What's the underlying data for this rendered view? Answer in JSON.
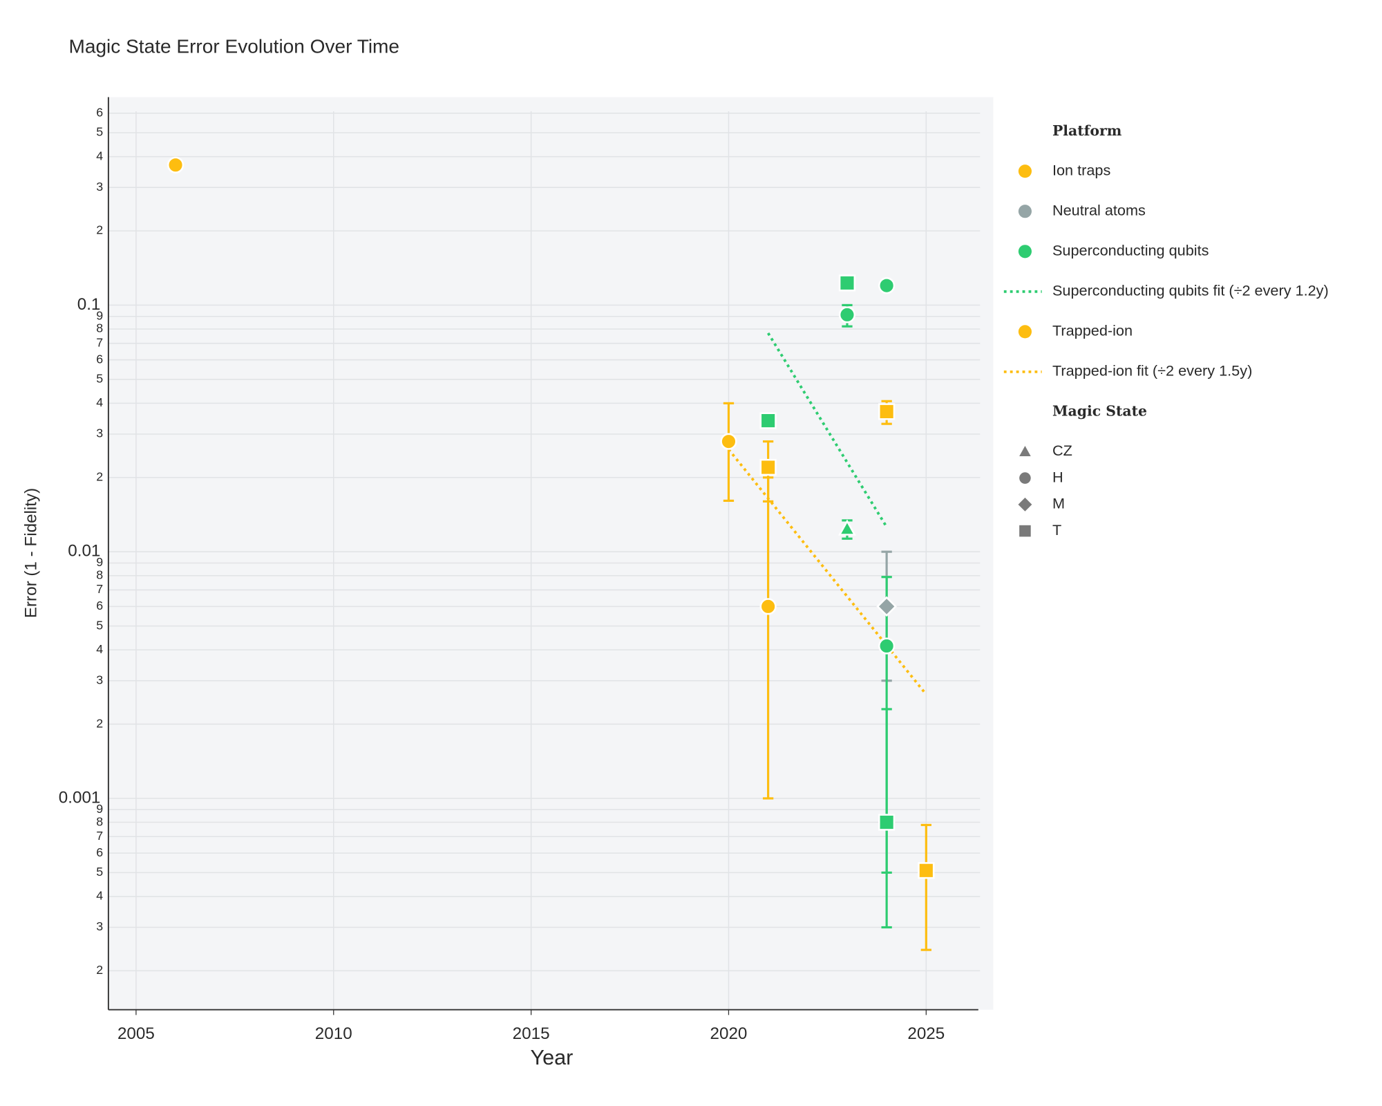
{
  "chart_data": {
    "type": "scatter",
    "title": "Magic State Error Evolution Over Time",
    "x_label": "Year",
    "y_label": "Error (1 - Fidelity)",
    "log_y": true,
    "grid": true,
    "xlim": [
      2004.3,
      2026.7
    ],
    "xticks": [
      2005,
      2010,
      2015,
      2020,
      2025
    ],
    "ylim": [
      0.000139,
      0.697
    ],
    "yticks": [
      {
        "value": 0.0002,
        "label": "2"
      },
      {
        "value": 0.0003,
        "label": "3"
      },
      {
        "value": 0.0004,
        "label": "4"
      },
      {
        "value": 0.0005,
        "label": "5"
      },
      {
        "value": 0.0006,
        "label": "6"
      },
      {
        "value": 0.0007,
        "label": "7"
      },
      {
        "value": 0.0008,
        "label": "8"
      },
      {
        "value": 0.0009,
        "label": "9"
      },
      0.001,
      {
        "value": 0.002,
        "label": "2"
      },
      {
        "value": 0.003,
        "label": "3"
      },
      {
        "value": 0.004,
        "label": "4"
      },
      {
        "value": 0.005,
        "label": "5"
      },
      {
        "value": 0.006,
        "label": "6"
      },
      {
        "value": 0.007,
        "label": "7"
      },
      {
        "value": 0.008,
        "label": "8"
      },
      {
        "value": 0.009,
        "label": "9"
      },
      0.01,
      {
        "value": 0.02,
        "label": "2"
      },
      {
        "value": 0.03,
        "label": "3"
      },
      {
        "value": 0.04,
        "label": "4"
      },
      {
        "value": 0.05,
        "label": "5"
      },
      {
        "value": 0.06,
        "label": "6"
      },
      {
        "value": 0.07,
        "label": "7"
      },
      {
        "value": 0.08,
        "label": "8"
      },
      {
        "value": 0.09,
        "label": "9"
      },
      0.1,
      {
        "value": 0.2,
        "label": "2"
      },
      {
        "value": 0.3,
        "label": "3"
      },
      {
        "value": 0.4,
        "label": "4"
      },
      {
        "value": 0.5,
        "label": "5"
      },
      {
        "value": 0.6,
        "label": "6"
      }
    ],
    "legend_title": "Platform",
    "symbol_legend": {
      "title": "Magic State",
      "items": [
        "CZ",
        "H",
        "M",
        "T"
      ]
    },
    "series": [
      {
        "name": "Ion traps",
        "color": "#fdbd10",
        "mode": "markers",
        "x": [
          2006
        ],
        "values": [
          0.37
        ],
        "symbols": [
          "H"
        ],
        "error_upper": [
          null
        ],
        "error_lower": [
          null
        ]
      },
      {
        "name": "Neutral atoms",
        "color": "#95a5a6",
        "mode": "markers",
        "x": [
          2024
        ],
        "values": [
          0.006
        ],
        "symbols": [
          "M"
        ],
        "error_upper": [
          0.01
        ],
        "error_lower": [
          0.003
        ]
      },
      {
        "name": "Superconducting qubits",
        "color": "#2ecc71",
        "mode": "markers",
        "x": [
          2021,
          2023,
          2023,
          2023,
          2024,
          2024,
          2024
        ],
        "values": [
          0.034,
          0.123,
          0.0914,
          0.0124,
          0.12,
          0.00415,
          0.0008
        ],
        "symbols": [
          "T",
          "T",
          "H",
          "CZ",
          "H",
          "H",
          "T"
        ],
        "error_upper": [
          null,
          null,
          0.1,
          0.0134,
          null,
          0.0079,
          0.0023
        ],
        "error_lower": [
          null,
          null,
          0.082,
          0.0113,
          null,
          0.0005,
          0.0003
        ]
      },
      {
        "name": "Superconducting qubits fit (÷2 every 1.2y)",
        "color": "#2ecc71",
        "mode": "lines",
        "dash": "dot",
        "x": [
          2021,
          2024
        ],
        "values": [
          0.077,
          0.0126
        ]
      },
      {
        "name": "Trapped-ion",
        "color": "#fdbd10",
        "mode": "markers",
        "x": [
          2020,
          2021,
          2021,
          2024,
          2025
        ],
        "values": [
          0.028,
          0.022,
          0.006,
          0.037,
          0.00051
        ],
        "symbols": [
          "H",
          "T",
          "H",
          "T",
          "T"
        ],
        "error_upper": [
          0.04,
          0.028,
          0.02,
          0.0408,
          0.00078
        ],
        "error_lower": [
          0.0161,
          0.016,
          0.001,
          0.033,
          0.000243
        ]
      },
      {
        "name": "Trapped-ion fit (÷2 every 1.5y)",
        "color": "#fdbd10",
        "mode": "lines",
        "dash": "dot",
        "x": [
          2020,
          2025
        ],
        "values": [
          0.026,
          0.00264
        ]
      }
    ]
  }
}
